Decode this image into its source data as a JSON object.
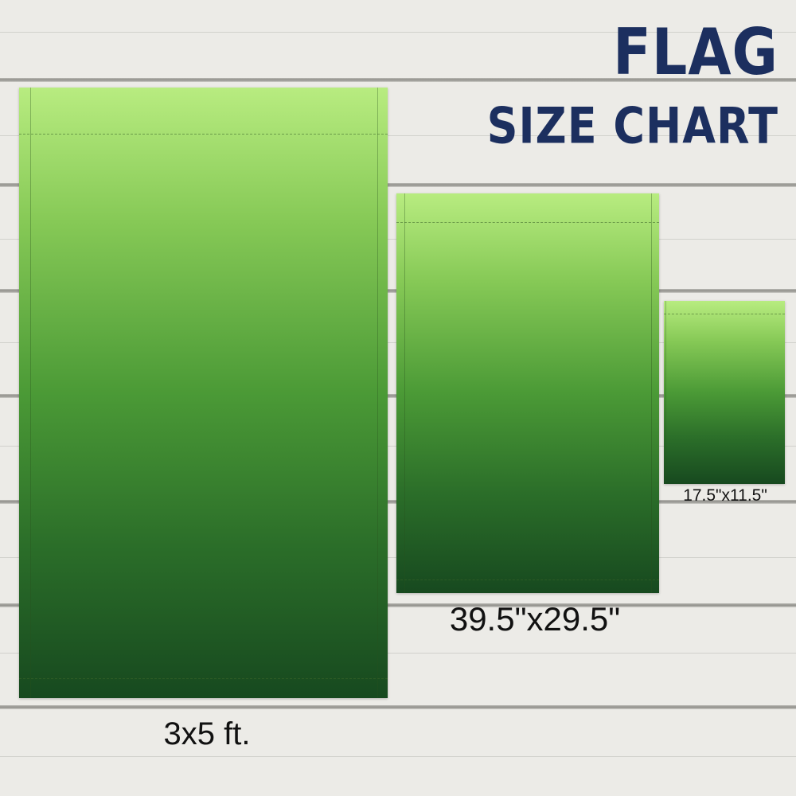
{
  "title": {
    "line1": "FLAG",
    "line2": "SIZE CHART",
    "color": "#1c2f5f"
  },
  "flags": [
    {
      "size_label": "3x5 ft."
    },
    {
      "size_label": "39.5\"x29.5\""
    },
    {
      "size_label": "17.5\"x11.5\""
    }
  ],
  "colors": {
    "flag_top": "#b8ec80",
    "flag_bottom": "#17491f",
    "background": "#ecebe7"
  }
}
